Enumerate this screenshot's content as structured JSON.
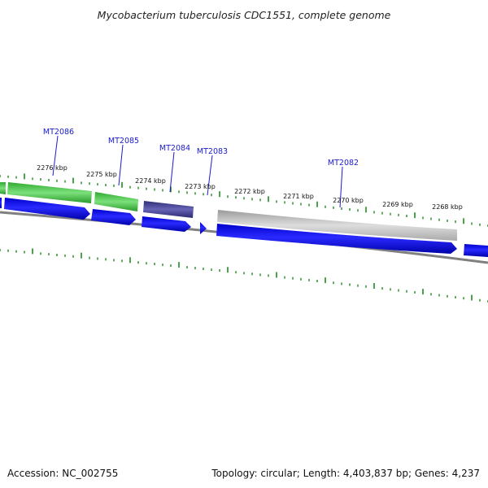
{
  "title": "Mycobacterium tuberculosis CDC1551, complete genome",
  "accession_text": "Accession: NC_002755",
  "summary_text": "Topology: circular; Length: 4,403,837 bp; Genes: 4,237",
  "kbp_labels": [
    "2276 kbp",
    "2275 kbp",
    "2274 kbp",
    "2273 kbp",
    "2272 kbp",
    "2271 kbp",
    "2270 kbp",
    "2269 kbp",
    "2268 kbp"
  ],
  "gene_labels": [
    "MT2086",
    "MT2085",
    "MT2084",
    "MT2083",
    "MT2082"
  ],
  "colors": {
    "gene_blue": "#0000ee",
    "cds_green": "#44cc44",
    "cds_purple": "#3d3b8e",
    "cds_gray": "#c8c8c8",
    "backbone_gray": "#808080",
    "tick_green": "#1e8c1e",
    "label_blue": "#1a1acc"
  }
}
